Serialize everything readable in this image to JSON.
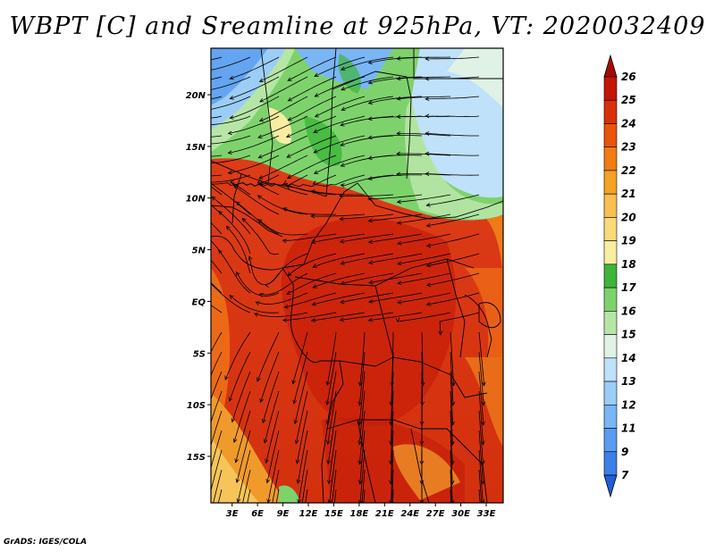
{
  "title": "WBPT [C] and Sreamline at 925hPa, VT: 2020032409",
  "footer": "GrADS: IGES/COLA",
  "map": {
    "lat_labels": [
      "20N",
      "15N",
      "10N",
      "5N",
      "EQ",
      "5S",
      "10S",
      "15S"
    ],
    "lat_values": [
      20,
      15,
      10,
      5,
      0,
      -5,
      -10,
      -15
    ],
    "lon_labels": [
      "3E",
      "6E",
      "9E",
      "12E",
      "15E",
      "18E",
      "21E",
      "24E",
      "27E",
      "30E",
      "33E"
    ],
    "lon_values": [
      3,
      6,
      9,
      12,
      15,
      18,
      21,
      24,
      27,
      30,
      33
    ],
    "lon_range": [
      0.5,
      35
    ],
    "lat_range": [
      -19.5,
      24.5
    ],
    "field": "Wet-bulb potential temperature (C) with 925hPa streamlines"
  },
  "colorbar": {
    "labels": [
      "7",
      "9",
      "11",
      "12",
      "13",
      "14",
      "15",
      "16",
      "17",
      "18",
      "19",
      "20",
      "21",
      "22",
      "23",
      "24",
      "25",
      "26"
    ],
    "colors": [
      "#1f5fd6",
      "#3c7fe6",
      "#5a9cf0",
      "#7ab6f5",
      "#9ccdf7",
      "#bfe1fa",
      "#dff2e5",
      "#b6e6a6",
      "#7ed26c",
      "#3db53a",
      "#f8eda0",
      "#f9d97a",
      "#f8bf52",
      "#f4a224",
      "#ef7d12",
      "#e8540c",
      "#d83008",
      "#c41606",
      "#a50a06"
    ]
  }
}
